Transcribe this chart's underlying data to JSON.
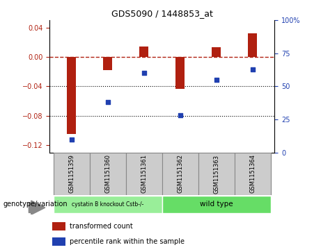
{
  "title": "GDS5090 / 1448853_at",
  "categories": [
    "GSM1151359",
    "GSM1151360",
    "GSM1151361",
    "GSM1151362",
    "GSM1151363",
    "GSM1151364"
  ],
  "bar_values": [
    -0.105,
    -0.018,
    0.014,
    -0.043,
    0.013,
    0.032
  ],
  "dot_values": [
    10,
    38,
    60,
    28,
    55,
    63
  ],
  "bar_color": "#b02010",
  "dot_color": "#2040b0",
  "ylim_left": [
    -0.13,
    0.05
  ],
  "ylim_right": [
    0,
    100
  ],
  "yticks_left": [
    -0.12,
    -0.08,
    -0.04,
    0.0,
    0.04
  ],
  "yticks_right": [
    0,
    25,
    50,
    75,
    100
  ],
  "ytick_right_labels": [
    "0",
    "25",
    "50",
    "75",
    "100%"
  ],
  "hline_y": 0,
  "dotted_lines": [
    -0.04,
    -0.08
  ],
  "group1_label": "cystatin B knockout Cstb-/-",
  "group2_label": "wild type",
  "group1_color": "#99ee99",
  "group2_color": "#66dd66",
  "legend_bar_label": "transformed count",
  "legend_dot_label": "percentile rank within the sample",
  "genotype_label": "genotype/variation",
  "bar_width": 0.25,
  "box_color": "#cccccc",
  "box_edge_color": "#888888"
}
